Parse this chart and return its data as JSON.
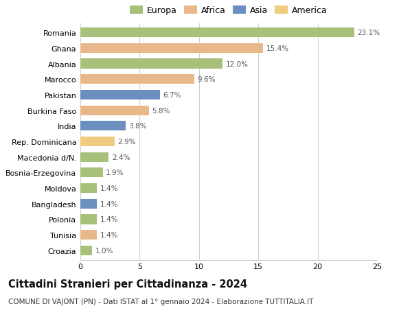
{
  "countries": [
    "Romania",
    "Ghana",
    "Albania",
    "Marocco",
    "Pakistan",
    "Burkina Faso",
    "India",
    "Rep. Dominicana",
    "Macedonia d/N.",
    "Bosnia-Erzegovina",
    "Moldova",
    "Bangladesh",
    "Polonia",
    "Tunisia",
    "Croazia"
  ],
  "values": [
    23.1,
    15.4,
    12.0,
    9.6,
    6.7,
    5.8,
    3.8,
    2.9,
    2.4,
    1.9,
    1.4,
    1.4,
    1.4,
    1.4,
    1.0
  ],
  "continents": [
    "Europa",
    "Africa",
    "Europa",
    "Africa",
    "Asia",
    "Africa",
    "Asia",
    "America",
    "Europa",
    "Europa",
    "Europa",
    "Asia",
    "Europa",
    "Africa",
    "Europa"
  ],
  "colors": {
    "Europa": "#a8c07a",
    "Africa": "#e8b88a",
    "Asia": "#6b8fbf",
    "America": "#f0cc80"
  },
  "legend_order": [
    "Europa",
    "Africa",
    "Asia",
    "America"
  ],
  "title": "Cittadini Stranieri per Cittadinanza - 2024",
  "subtitle": "COMUNE DI VAJONT (PN) - Dati ISTAT al 1° gennaio 2024 - Elaborazione TUTTITALIA.IT",
  "xlim": [
    0,
    25
  ],
  "xticks": [
    0,
    5,
    10,
    15,
    20,
    25
  ],
  "background_color": "#ffffff",
  "grid_color": "#d0d0d0",
  "bar_label_fontsize": 7.5,
  "title_fontsize": 10.5,
  "subtitle_fontsize": 7.5,
  "ytick_fontsize": 8,
  "xtick_fontsize": 8,
  "legend_fontsize": 9
}
